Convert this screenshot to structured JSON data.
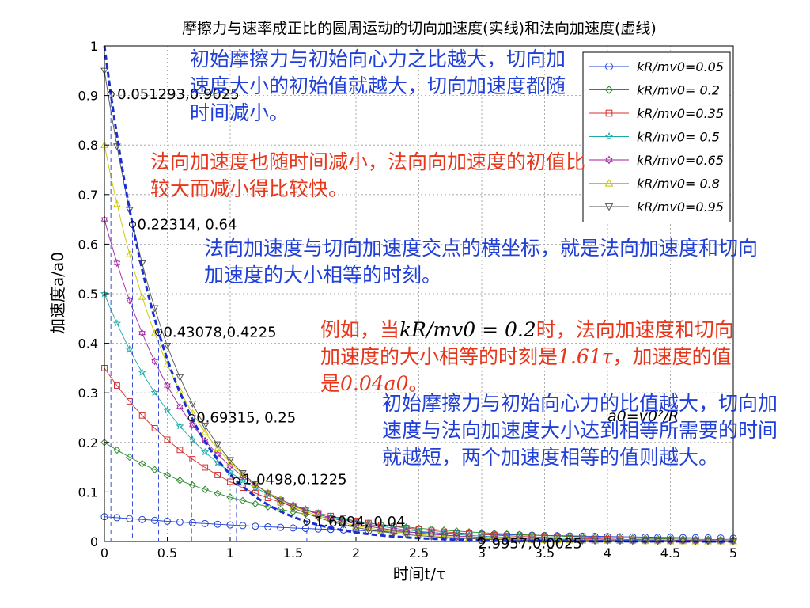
{
  "chart_data": {
    "type": "line",
    "title": "摩擦力与速率成正比的圆周运动的切向加速度(实线)和法向加速度(虚线)",
    "xlabel": "时间t/τ",
    "ylabel": "加速度a/a0",
    "xlim": [
      0,
      5
    ],
    "ylim": [
      0,
      1
    ],
    "x_ticks": [
      "0",
      "0.5",
      "1",
      "1.5",
      "2",
      "2.5",
      "3",
      "3.5",
      "4",
      "4.5",
      "5"
    ],
    "y_ticks": [
      "0",
      "0.1",
      "0.2",
      "0.3",
      "0.4",
      "0.5",
      "0.6",
      "0.7",
      "0.8",
      "0.9",
      "1"
    ],
    "grid": true,
    "legend_position": "top-right",
    "tangential_series": [
      {
        "name": "kR/mv0=0.05",
        "k": 0.05,
        "marker": "circle",
        "color": "#1f3fd8"
      },
      {
        "name": "kR/mv0= 0.2",
        "k": 0.2,
        "marker": "diamond",
        "color": "#2e8b2e"
      },
      {
        "name": "kR/mv0=0.35",
        "k": 0.35,
        "marker": "square",
        "color": "#d03030"
      },
      {
        "name": "kR/mv0= 0.5",
        "k": 0.5,
        "marker": "star",
        "color": "#1aa8a8"
      },
      {
        "name": "kR/mv0=0.65",
        "k": 0.65,
        "marker": "hexagram",
        "color": "#a020a0"
      },
      {
        "name": "kR/mv0= 0.8",
        "k": 0.8,
        "marker": "triangle-up",
        "color": "#c8c800"
      },
      {
        "name": "kR/mv0=0.95",
        "k": 0.95,
        "marker": "triangle-down",
        "color": "#555555"
      }
    ],
    "normal_series": {
      "formula": "exp(-2t)",
      "color": "#1a2fd0",
      "style": "dashed"
    },
    "intersection_points": [
      {
        "x": 0.051293,
        "y": 0.9025,
        "label": "0.051293,0.9025"
      },
      {
        "x": 0.22314,
        "y": 0.64,
        "label": "0.22314, 0.64"
      },
      {
        "x": 0.43078,
        "y": 0.4225,
        "label": "0.43078,0.4225"
      },
      {
        "x": 0.69315,
        "y": 0.25,
        "label": "0.69315, 0.25"
      },
      {
        "x": 1.0498,
        "y": 0.1225,
        "label": "1.0498,0.1225"
      },
      {
        "x": 1.6094,
        "y": 0.04,
        "label": "1.6094, 0.04"
      },
      {
        "x": 2.9957,
        "y": 0.0025,
        "label": "2.9957,0.0025"
      }
    ],
    "inline_formula": "a0=v0²/R"
  },
  "annotations": {
    "note1": "初始摩擦力与初始向心力之比越大，切向加速度大小的初始值就越大，切向加速度都随时间减小。",
    "note2": "法向加速度也随时间减小，法向向加速度的初值比较大而减小得比较快。",
    "note3": "法向加速度与切向加速度交点的横坐标，就是法向加速度和切向加速度的大小相等的时刻。",
    "note4_a": "例如，当",
    "note4_formula": "kR/mv0 = 0.2",
    "note4_b": "时，法向加速度和切向加速度的大小相等的时刻是",
    "note4_time": "1.61τ",
    "note4_c": "，加速度的值是",
    "note4_value": "0.04a0",
    "note4_d": "。",
    "note5": "初始摩擦力与初始向心力的比值越大，切向加速度与法向加速度大小达到相等所需要的时间就越短，两个加速度相等的值则越大。"
  }
}
